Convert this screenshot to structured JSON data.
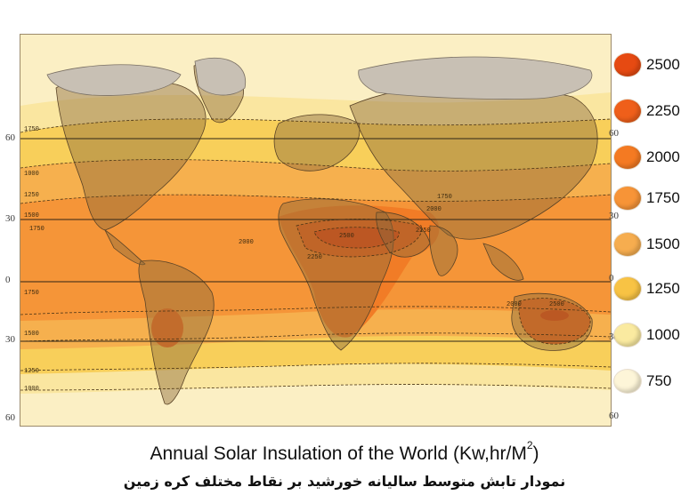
{
  "title": "Annual Solar Insulation of the World",
  "units": "(Kw,hr/M",
  "units_sup": "2",
  "units_close": ")",
  "subtitle": "نمودار تابش متوسط سالیانه خورشید بر نقاط مختلف کره زمین",
  "latitude_labels_left": [
    "60",
    "30",
    "0",
    "30",
    "60"
  ],
  "latitude_labels_right": [
    "60",
    "30",
    "0",
    "30",
    "60"
  ],
  "legend": [
    {
      "label": "2500",
      "color": "#e64a12"
    },
    {
      "label": "2250",
      "color": "#ef5f1a"
    },
    {
      "label": "2000",
      "color": "#f47a22"
    },
    {
      "label": "1750",
      "color": "#f79437"
    },
    {
      "label": "1500",
      "color": "#f6ad4f"
    },
    {
      "label": "1250",
      "color": "#f8c344"
    },
    {
      "label": "1000",
      "color": "#faeaa0"
    },
    {
      "label": "750",
      "color": "#fdf5d8"
    }
  ],
  "contour_labels": {
    "c1750_nw": "1750",
    "c1000_w": "1000",
    "c1250_w": "1250",
    "c1500_w": "1500",
    "c1750_w": "1750",
    "c1750_eq": "1750",
    "c1500_s": "1500",
    "c1250_s": "1250",
    "c1000_s": "1000",
    "c2500_af": "2500",
    "c2000_af": "2000",
    "c2250_af": "2250",
    "c1750_as": "1750",
    "c2000_as": "2000",
    "c2250_ar": "2250",
    "c2000_au": "2000",
    "c2500_au": "2500"
  }
}
